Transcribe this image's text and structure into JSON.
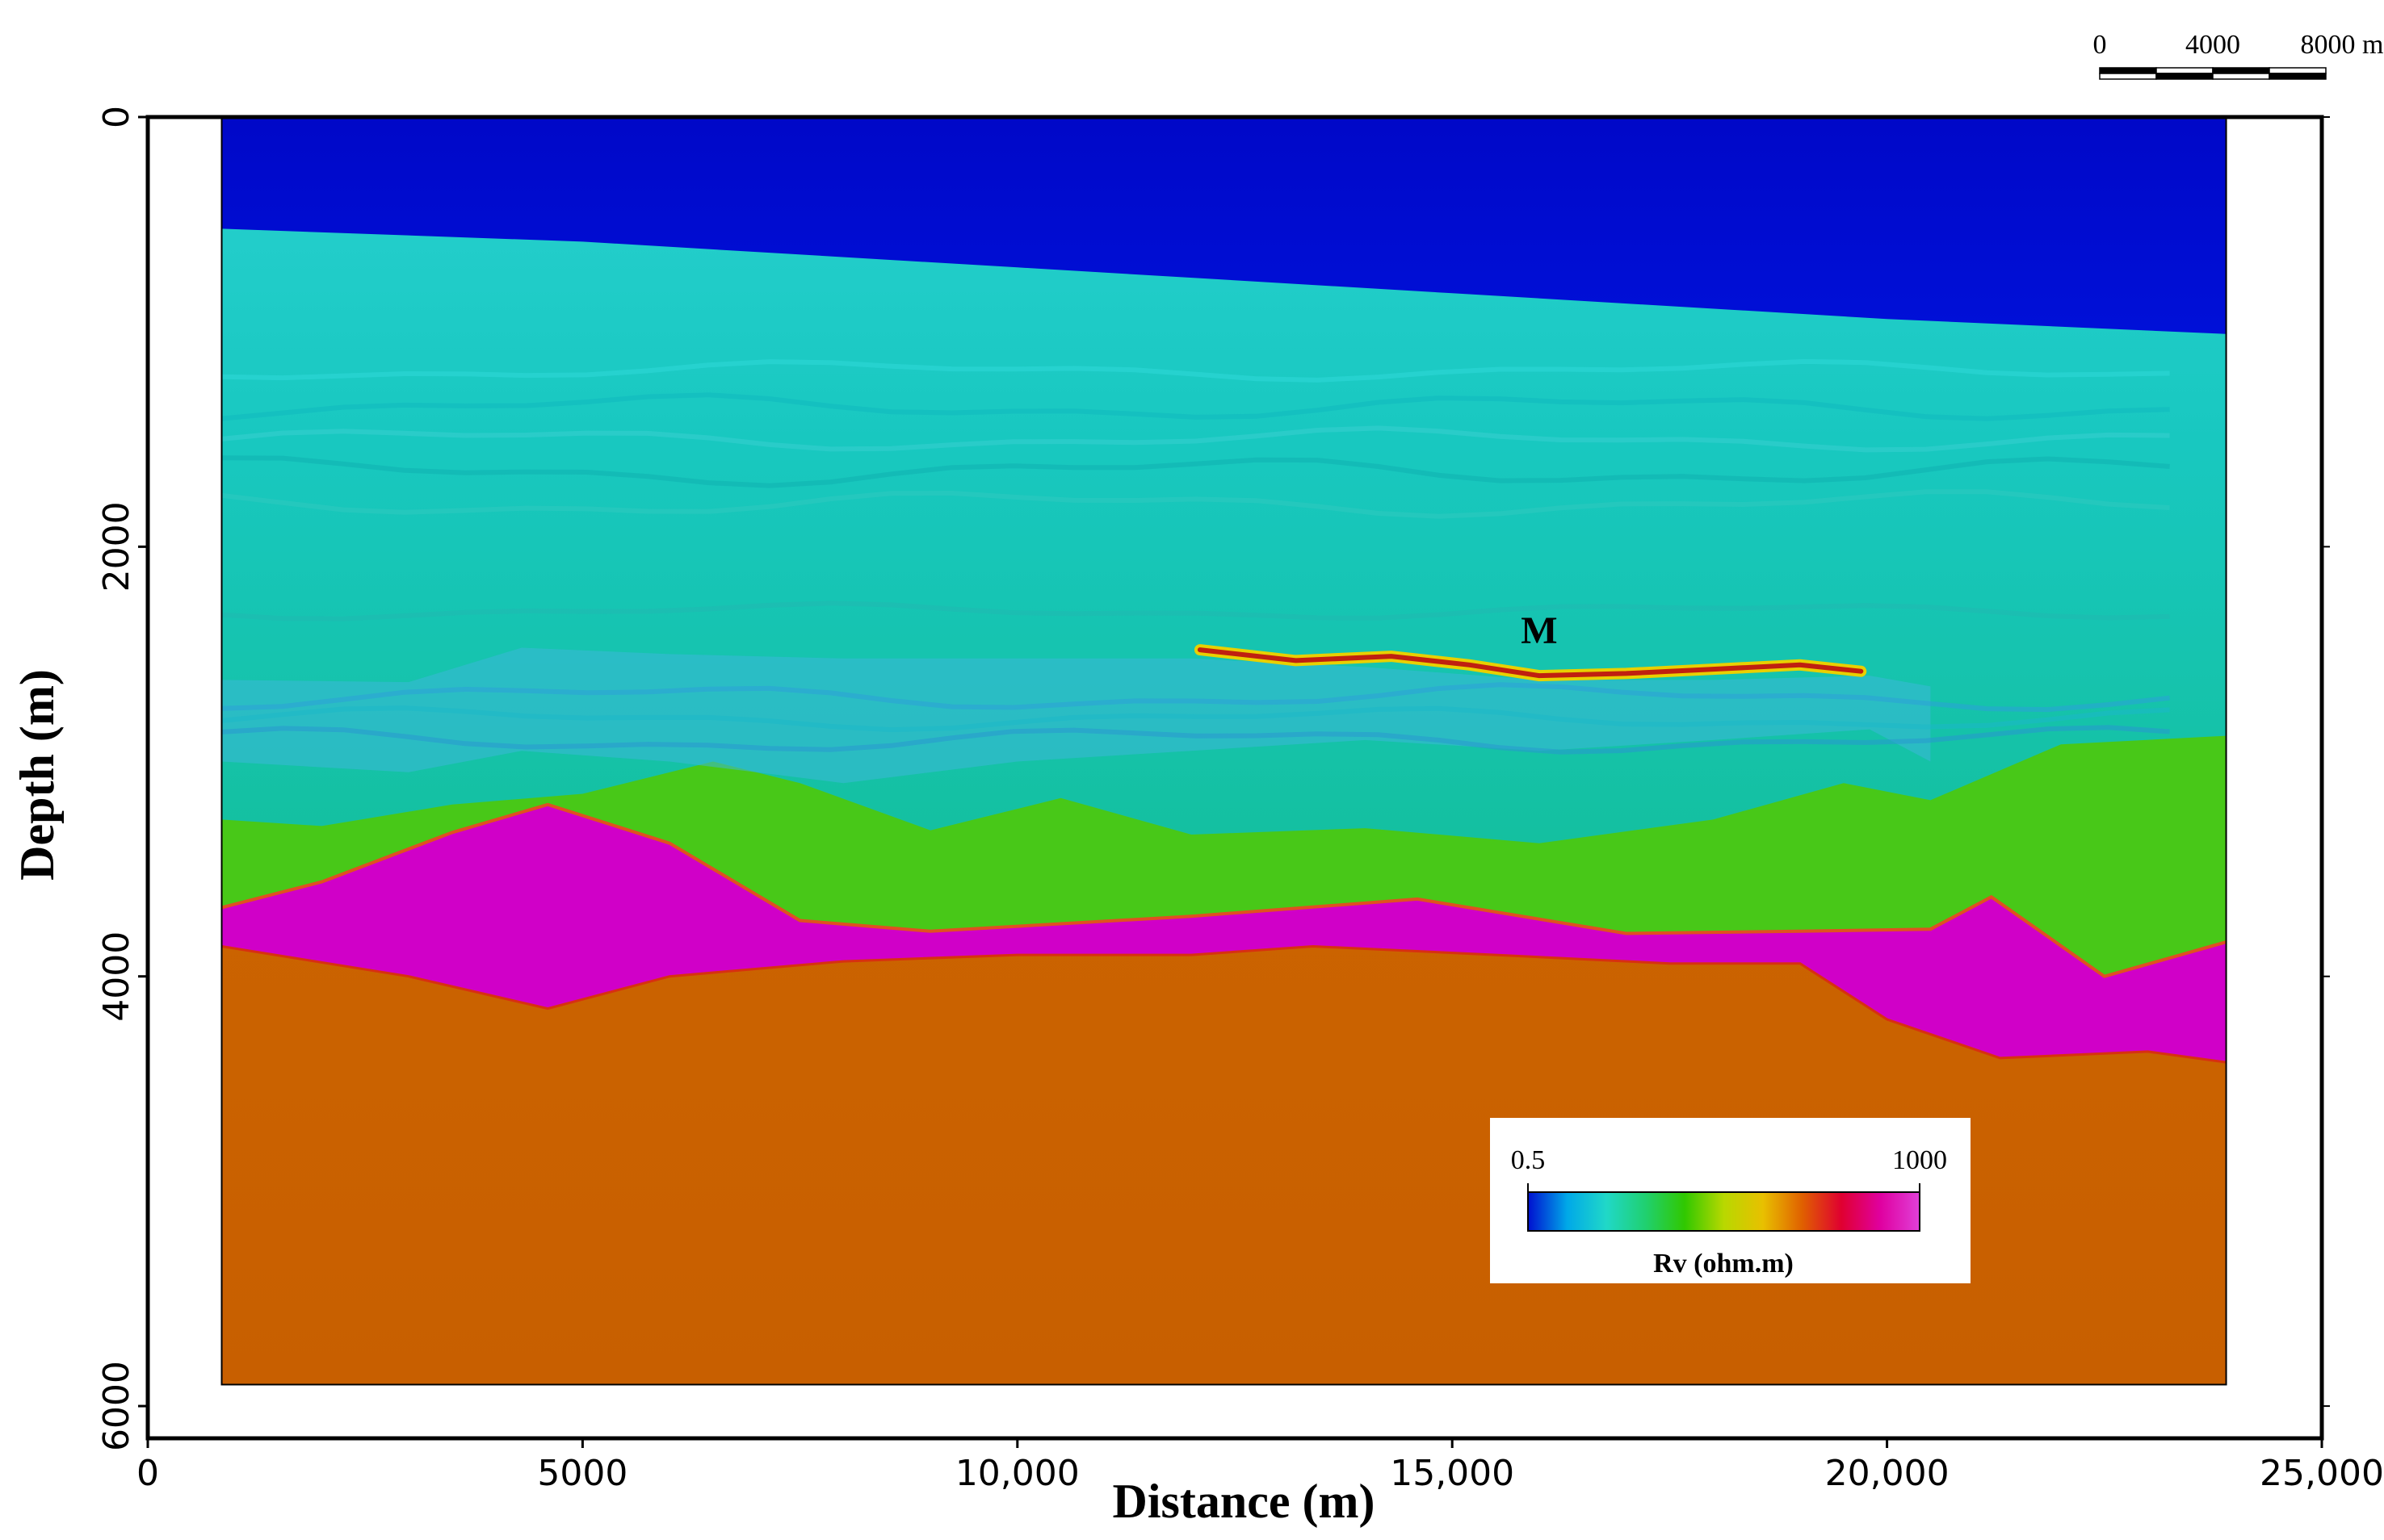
{
  "chart_data": {
    "type": "heatmap",
    "subtype": "resistivity depth section",
    "xlabel": "Distance (m)",
    "ylabel": "Depth (m)",
    "xlim": [
      0,
      25000
    ],
    "ylim": [
      6150,
      0
    ],
    "y_inverted": true,
    "x_ticks": [
      0,
      5000,
      10000,
      15000,
      20000,
      25000
    ],
    "x_tick_labels": [
      "0",
      "5000",
      "10,000",
      "15,000",
      "20,000",
      "25,000"
    ],
    "y_ticks": [
      0,
      2000,
      4000,
      6000
    ],
    "y_tick_labels": [
      "0",
      "2000",
      "4000",
      "6000"
    ],
    "model_extent": {
      "x": [
        850,
        23900
      ],
      "depth": [
        0,
        5900
      ]
    },
    "annotation": {
      "label": "M",
      "x": 16000,
      "depth": 2450
    },
    "anomaly_M": {
      "x": [
        12100,
        13200,
        14300,
        15200,
        16000,
        17000,
        18000,
        19000,
        19700
      ],
      "depth": [
        2480,
        2530,
        2510,
        2550,
        2600,
        2590,
        2570,
        2550,
        2580
      ]
    },
    "layers": [
      {
        "name": "water",
        "color": "#0010c8",
        "top_x": [
          850,
          23900
        ],
        "top_depth": [
          0,
          0
        ],
        "bottom_x": [
          850,
          5000,
          10000,
          15000,
          20000,
          23900
        ],
        "bottom_depth": [
          520,
          580,
          700,
          820,
          940,
          1010
        ]
      },
      {
        "name": "shallow sediments",
        "color": "#20c8c8",
        "bottom_x": [
          850,
          23900
        ],
        "bottom_depth": [
          1900,
          1900
        ]
      },
      {
        "name": "intermediate sediments",
        "color": "#18c0a8"
      },
      {
        "name": "resistive layer",
        "color": "#d000c8",
        "top_x": [
          850,
          2000,
          3500,
          4600,
          6000,
          7500,
          9000,
          12000,
          14600,
          17000,
          19000,
          20500,
          21200,
          22500,
          23900
        ],
        "top_depth": [
          3680,
          3560,
          3330,
          3200,
          3380,
          3740,
          3790,
          3720,
          3640,
          3800,
          3790,
          3780,
          3630,
          4000,
          3840
        ],
        "bottom_x": [
          850,
          3000,
          4600,
          6000,
          8000,
          10000,
          12000,
          13400,
          15500,
          17500,
          19000,
          20000,
          21300,
          23000,
          23900
        ],
        "bottom_depth": [
          3860,
          4000,
          4150,
          4000,
          3930,
          3900,
          3900,
          3860,
          3900,
          3940,
          3940,
          4200,
          4380,
          4350,
          4400
        ]
      },
      {
        "name": "basement",
        "color": "#d06a00"
      }
    ],
    "colorbar": {
      "title": "Rv (ohm.m)",
      "min_label": "0.5",
      "max_label": "1000",
      "min": 0.5,
      "max": 1000,
      "colors": [
        "#0010d0",
        "#00a8e8",
        "#20d8c8",
        "#20d070",
        "#30c800",
        "#b8d800",
        "#e8c000",
        "#e06000",
        "#e00030",
        "#e000a0",
        "#e040d8"
      ]
    },
    "scale_bar": {
      "labels": [
        "0",
        "4000",
        "8000 m"
      ],
      "unit": "m",
      "ticks": [
        0,
        4000,
        8000
      ]
    }
  }
}
